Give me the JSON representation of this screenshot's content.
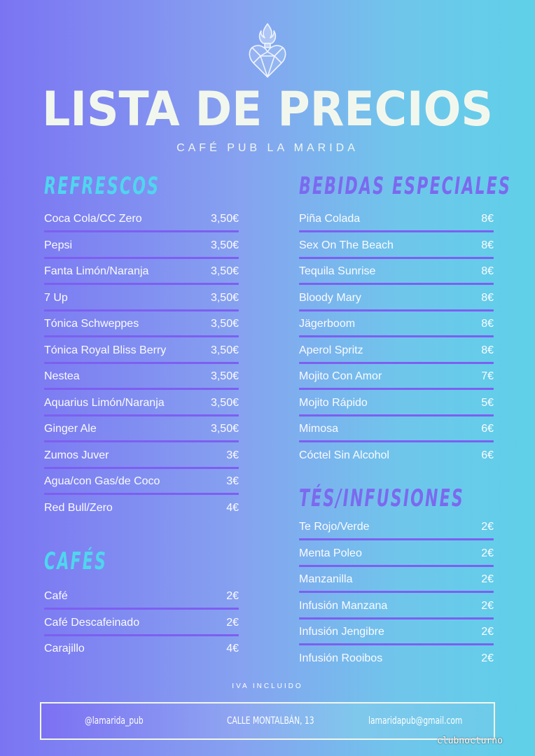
{
  "header": {
    "title": "LISTA DE PRECIOS",
    "subtitle": "CAFÉ PUB LA MARIDA",
    "logo_icon": "flaming-heart-icon"
  },
  "sections": {
    "refrescos": {
      "title": "REFRESCOS",
      "items": [
        {
          "name": "Coca Cola/CC Zero",
          "price": "3,50€"
        },
        {
          "name": "Pepsi",
          "price": "3,50€"
        },
        {
          "name": "Fanta Limón/Naranja",
          "price": "3,50€"
        },
        {
          "name": "7 Up",
          "price": "3,50€"
        },
        {
          "name": "Tónica Schweppes",
          "price": "3,50€"
        },
        {
          "name": "Tónica Royal Bliss Berry",
          "price": "3,50€"
        },
        {
          "name": "Nestea",
          "price": "3,50€"
        },
        {
          "name": "Aquarius Limón/Naranja",
          "price": "3,50€"
        },
        {
          "name": "Ginger Ale",
          "price": "3,50€"
        },
        {
          "name": "Zumos Juver",
          "price": "3€"
        },
        {
          "name": "Agua/con Gas/de Coco",
          "price": "3€"
        },
        {
          "name": "Red Bull/Zero",
          "price": "4€"
        }
      ]
    },
    "cafes": {
      "title": "CAFÉS",
      "items": [
        {
          "name": "Café",
          "price": "2€"
        },
        {
          "name": "Café Descafeinado",
          "price": "2€"
        },
        {
          "name": "Carajillo",
          "price": "4€"
        }
      ]
    },
    "bebidas": {
      "title": "BEBIDAS ESPECIALES",
      "items": [
        {
          "name": "Piña Colada",
          "price": "8€"
        },
        {
          "name": "Sex On The Beach",
          "price": "8€"
        },
        {
          "name": "Tequila Sunrise",
          "price": "8€"
        },
        {
          "name": "Bloody Mary",
          "price": "8€"
        },
        {
          "name": "Jägerboom",
          "price": "8€"
        },
        {
          "name": "Aperol Spritz",
          "price": "8€"
        },
        {
          "name": "Mojito Con Amor",
          "price": "7€"
        },
        {
          "name": "Mojito Rápido",
          "price": "5€"
        },
        {
          "name": "Mimosa",
          "price": "6€"
        },
        {
          "name": "Cóctel Sin Alcohol",
          "price": "6€"
        }
      ]
    },
    "tes": {
      "title": "TÉS/INFUSIONES",
      "items": [
        {
          "name": "Te Rojo/Verde",
          "price": "2€"
        },
        {
          "name": "Menta Poleo",
          "price": "2€"
        },
        {
          "name": "Manzanilla",
          "price": "2€"
        },
        {
          "name": "Infusión Manzana",
          "price": "2€"
        },
        {
          "name": "Infusión Jengibre",
          "price": "2€"
        },
        {
          "name": "Infusión Rooibos",
          "price": "2€"
        }
      ]
    }
  },
  "footer": {
    "iva": "IVA INCLUIDO",
    "instagram": "@lamarida_pub",
    "address": "CALLE MONTALBÁN, 13",
    "email": "lamaridapub@gmail.com"
  },
  "watermark": "clubnocturno",
  "colors": {
    "accent_cyan": "#4fd6ee",
    "accent_purple": "#7c69ef",
    "divider": "#7d5ff0"
  }
}
